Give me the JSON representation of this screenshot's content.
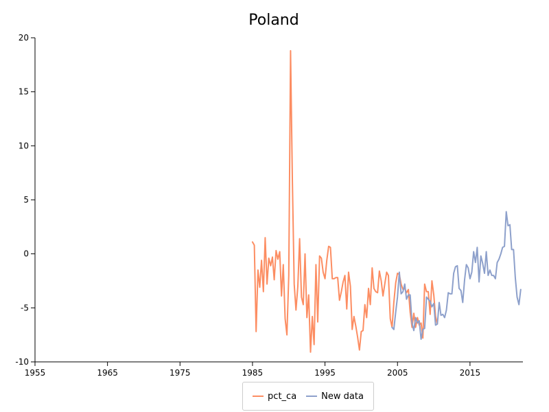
{
  "chart_data": {
    "type": "line",
    "title": "Poland",
    "xlabel": "",
    "ylabel": "",
    "xlim": [
      1955,
      2022.3
    ],
    "ylim": [
      -10,
      20
    ],
    "xticks": [
      "1955",
      "1965",
      "1975",
      "1985",
      "1995",
      "2005",
      "2015"
    ],
    "yticks": [
      "-10",
      "-5",
      "0",
      "5",
      "10",
      "15",
      "20"
    ],
    "legend_position": "bottom-center",
    "series": [
      {
        "name": "pct_ca",
        "color": "#fc8d62",
        "x": [
          1985.0,
          1985.25,
          1985.5,
          1985.75,
          1986.0,
          1986.25,
          1986.5,
          1986.75,
          1987.0,
          1987.25,
          1987.5,
          1987.75,
          1988.0,
          1988.25,
          1988.5,
          1988.75,
          1989.0,
          1989.25,
          1989.5,
          1989.75,
          1990.0,
          1990.25,
          1990.5,
          1990.75,
          1991.0,
          1991.25,
          1991.5,
          1991.75,
          1992.0,
          1992.25,
          1992.5,
          1992.75,
          1993.0,
          1993.25,
          1993.5,
          1993.75,
          1994.0,
          1994.25,
          1994.5,
          1994.75,
          1995.0,
          1995.25,
          1995.5,
          1995.75,
          1996.0,
          1996.25,
          1996.5,
          1996.75,
          1997.0,
          1997.25,
          1997.5,
          1997.75,
          1998.0,
          1998.25,
          1998.5,
          1998.75,
          1999.0,
          1999.25,
          1999.5,
          1999.75,
          2000.0,
          2000.25,
          2000.5,
          2000.75,
          2001.0,
          2001.25,
          2001.5,
          2001.75,
          2002.0,
          2002.25,
          2002.5,
          2002.75,
          2003.0,
          2003.25,
          2003.5,
          2003.75,
          2004.0,
          2004.25,
          2004.5,
          2004.75,
          2005.0,
          2005.25,
          2005.5,
          2005.75,
          2006.0,
          2006.25,
          2006.5,
          2006.75,
          2007.0,
          2007.25,
          2007.5,
          2007.75,
          2008.0,
          2008.25,
          2008.5,
          2008.75,
          2009.0,
          2009.25,
          2009.5,
          2009.75,
          2010.0,
          2010.25,
          2010.5
        ],
        "y": [
          1.1,
          0.8,
          -7.2,
          -1.5,
          -3.1,
          -0.6,
          -3.5,
          1.5,
          -2.8,
          -0.4,
          -1.1,
          -0.3,
          -2.4,
          0.3,
          -0.5,
          0.2,
          -3.9,
          -1.0,
          -6.0,
          -7.5,
          -2.0,
          18.8,
          7.0,
          -2.8,
          -5.2,
          -3.0,
          1.4,
          -4.0,
          -4.7,
          0.0,
          -5.9,
          -3.8,
          -9.1,
          -5.8,
          -8.4,
          -1.0,
          -6.3,
          -0.2,
          -0.4,
          -1.7,
          -2.3,
          -0.6,
          0.7,
          0.6,
          -2.3,
          -2.3,
          -2.2,
          -2.2,
          -4.3,
          -3.5,
          -2.6,
          -2.0,
          -5.1,
          -1.7,
          -3.0,
          -7.0,
          -5.8,
          -6.7,
          -7.7,
          -8.9,
          -7.2,
          -7.1,
          -4.7,
          -5.9,
          -3.2,
          -4.7,
          -1.3,
          -3.2,
          -3.5,
          -3.6,
          -1.6,
          -2.5,
          -3.9,
          -2.8,
          -1.7,
          -2.0,
          -6.0,
          -6.8,
          -4.5,
          -2.7,
          -1.8,
          -1.9,
          -2.8,
          -3.3,
          -3.2,
          -3.6,
          -3.3,
          -5.4,
          -6.8,
          -5.5,
          -6.8,
          -5.9,
          -6.6,
          -6.4,
          -7.8,
          -2.8,
          -3.5,
          -3.5,
          -5.6,
          -2.5,
          -3.8,
          -5.8,
          -6.5
        ]
      },
      {
        "name": "New data",
        "color": "#8da0cb",
        "x": [
          2004.25,
          2004.5,
          2004.75,
          2005.0,
          2005.25,
          2005.5,
          2005.75,
          2006.0,
          2006.25,
          2006.5,
          2006.75,
          2007.0,
          2007.25,
          2007.5,
          2007.75,
          2008.0,
          2008.25,
          2008.5,
          2008.75,
          2009.0,
          2009.25,
          2009.5,
          2009.75,
          2010.0,
          2010.25,
          2010.5,
          2010.75,
          2011.0,
          2011.25,
          2011.5,
          2011.75,
          2012.0,
          2012.25,
          2012.5,
          2012.75,
          2013.0,
          2013.25,
          2013.5,
          2013.75,
          2014.0,
          2014.25,
          2014.5,
          2014.75,
          2015.0,
          2015.25,
          2015.5,
          2015.75,
          2016.0,
          2016.25,
          2016.5,
          2016.75,
          2017.0,
          2017.25,
          2017.5,
          2017.75,
          2018.0,
          2018.25,
          2018.5,
          2018.75,
          2019.0,
          2019.25,
          2019.5,
          2019.75,
          2020.0,
          2020.25,
          2020.5,
          2020.75,
          2021.0,
          2021.25,
          2021.5,
          2021.75,
          2022.0
        ],
        "y": [
          -6.8,
          -7.0,
          -5.4,
          -4.0,
          -1.7,
          -3.7,
          -3.5,
          -2.8,
          -4.2,
          -3.8,
          -3.8,
          -6.4,
          -7.1,
          -5.9,
          -6.4,
          -6.2,
          -7.9,
          -7.0,
          -6.9,
          -4.0,
          -4.2,
          -4.4,
          -4.9,
          -4.6,
          -6.6,
          -6.5,
          -4.5,
          -5.7,
          -5.6,
          -5.9,
          -5.2,
          -3.6,
          -3.7,
          -3.7,
          -1.8,
          -1.2,
          -1.1,
          -3.2,
          -3.4,
          -4.5,
          -2.4,
          -1.0,
          -1.3,
          -2.3,
          -1.7,
          0.2,
          -0.8,
          0.6,
          -2.6,
          -0.2,
          -0.9,
          -1.8,
          0.2,
          -2.0,
          -1.5,
          -2.0,
          -2.0,
          -2.3,
          -0.8,
          -0.5,
          0.0,
          0.6,
          0.7,
          3.9,
          2.6,
          2.7,
          0.4,
          0.4,
          -2.2,
          -4.0,
          -4.7,
          -3.3
        ]
      }
    ]
  }
}
